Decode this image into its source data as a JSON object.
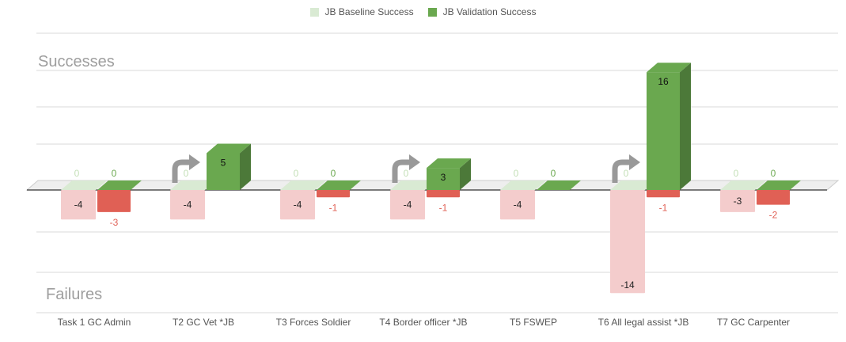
{
  "colors": {
    "baseline_success": "#d9ead3",
    "validation_success": "#6aa84f",
    "baseline_failure": "#f4cccc",
    "validation_failure": "#e06055",
    "arrow": "#999999",
    "grid": "#d9d9d9"
  },
  "chart_data": {
    "type": "bar",
    "legend_position": "top",
    "grid": true,
    "categories": [
      "Task 1 GC Admin",
      "T2 GC Vet *JB",
      "T3 Forces Soldier",
      "T4 Border officer *JB",
      "T5 FSWEP",
      "T6 All legal assist *JB",
      "T7 GC Carpenter"
    ],
    "series": [
      {
        "name": "JB Baseline Success",
        "values": [
          0,
          0,
          0,
          0,
          0,
          0,
          0
        ]
      },
      {
        "name": "JB Validation Success",
        "values": [
          0,
          5,
          0,
          3,
          0,
          16,
          0
        ]
      },
      {
        "values": [
          -4,
          -4,
          -4,
          -4,
          -4,
          -14,
          -3
        ]
      },
      {
        "values": [
          -3,
          null,
          -1,
          -1,
          null,
          -1,
          -2
        ]
      }
    ],
    "zone_labels": {
      "top": "Successes",
      "bottom": "Failures"
    },
    "improvement_arrows": [
      "T2 GC Vet *JB",
      "T4 Border officer *JB",
      "T6 All legal assist *JB"
    ]
  }
}
